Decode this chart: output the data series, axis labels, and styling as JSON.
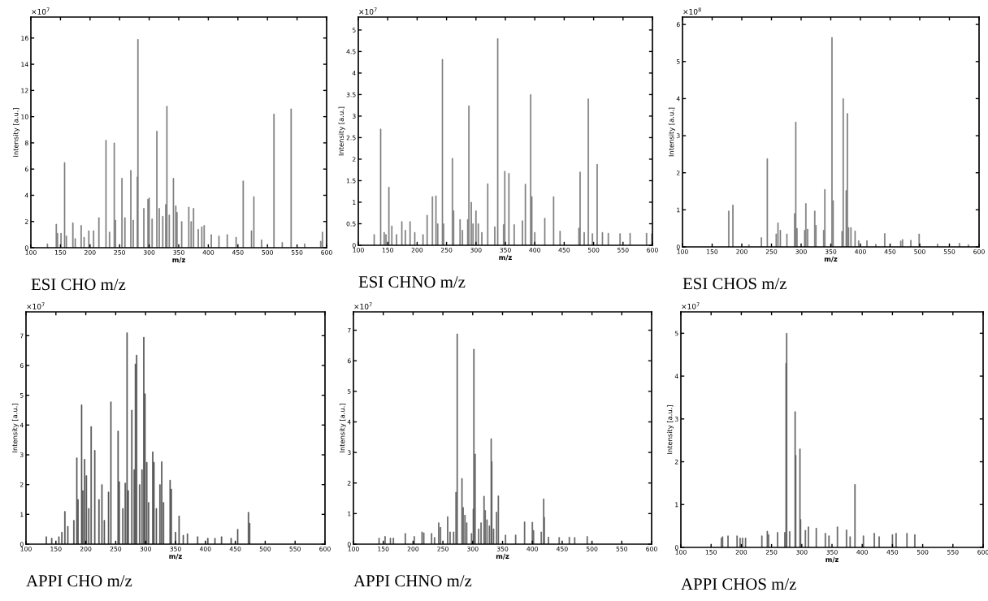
{
  "chart_data": [
    {
      "type": "bar",
      "title": "ESI CHO m/z",
      "xlabel": "m/z",
      "ylabel": "Intensity [a.u.]",
      "annotations": [
        "×10$^{7}$"
      ],
      "xlim": [
        100,
        600
      ],
      "xticks": [
        100,
        150,
        200,
        250,
        300,
        350,
        400,
        450,
        500,
        550,
        600
      ],
      "ylim": [
        0,
        17.6
      ],
      "yticks": [
        0,
        2,
        4,
        6,
        8,
        10,
        12,
        14,
        16
      ],
      "grid": false,
      "series": [
        {
          "color": "#7a7a7a",
          "x": [
            128,
            143,
            145,
            151,
            157,
            160,
            171,
            175,
            185,
            190,
            198,
            206,
            215,
            227,
            233,
            241,
            243,
            254,
            259,
            269,
            273,
            280,
            281,
            291,
            298,
            300,
            305,
            313,
            317,
            323,
            328,
            330,
            334,
            341,
            345,
            347,
            355,
            367,
            371,
            375,
            383,
            389,
            393,
            405,
            418,
            432,
            447,
            459,
            473,
            477,
            490,
            511,
            525,
            540,
            563,
            590,
            593
          ],
          "values": [
            0.3,
            1.8,
            1.1,
            1.1,
            6.5,
            0.9,
            1.9,
            0.7,
            1.7,
            0.8,
            1.3,
            1.3,
            2.3,
            8.2,
            1.2,
            8.0,
            2.1,
            5.3,
            2.3,
            5.9,
            2.1,
            5.4,
            15.9,
            3.0,
            3.7,
            3.8,
            2.2,
            8.9,
            3.0,
            2.4,
            3.3,
            10.8,
            2.5,
            5.3,
            3.2,
            2.7,
            2.0,
            3.1,
            2.0,
            3.0,
            1.4,
            1.6,
            1.7,
            1.0,
            0.9,
            1.0,
            0.8,
            5.1,
            1.3,
            3.9,
            0.6,
            10.2,
            0.4,
            10.6,
            0.3,
            0.5,
            1.2
          ]
        }
      ]
    },
    {
      "type": "bar",
      "title": "ESI CHNO m/z",
      "xlabel": "m/z",
      "ylabel": "Intensity [a.u.]",
      "annotations": [
        "×10$^{7}$"
      ],
      "xlim": [
        100,
        600
      ],
      "xticks": [
        100,
        150,
        200,
        250,
        300,
        350,
        400,
        450,
        500,
        550,
        600
      ],
      "ylim": [
        0,
        5.3
      ],
      "yticks": [
        0,
        0.5,
        1,
        1.5,
        2,
        2.5,
        3,
        3.5,
        4,
        4.5,
        5
      ],
      "grid": false,
      "series": [
        {
          "color": "#7a7a7a",
          "x": [
            127,
            138,
            144,
            147,
            152,
            157,
            165,
            174,
            180,
            188,
            196,
            210,
            217,
            226,
            232,
            235,
            243,
            245,
            260,
            262,
            273,
            277,
            286,
            288,
            292,
            295,
            300,
            304,
            310,
            320,
            332,
            337,
            347,
            349,
            356,
            365,
            379,
            384,
            393,
            395,
            400,
            417,
            432,
            443,
            475,
            477,
            484,
            491,
            498,
            506,
            515,
            525,
            545,
            562,
            590,
            599
          ],
          "values": [
            0.25,
            2.7,
            0.3,
            0.25,
            1.35,
            0.45,
            0.25,
            0.55,
            0.35,
            0.55,
            0.3,
            0.25,
            0.7,
            1.13,
            1.15,
            0.5,
            4.32,
            0.5,
            2.02,
            0.8,
            0.6,
            0.35,
            0.6,
            3.24,
            1.0,
            0.5,
            0.8,
            0.5,
            0.3,
            1.43,
            0.43,
            4.8,
            0.48,
            1.72,
            1.67,
            0.48,
            0.57,
            1.42,
            3.5,
            1.13,
            0.3,
            0.63,
            1.13,
            0.33,
            0.4,
            1.7,
            0.3,
            3.4,
            0.27,
            1.88,
            0.3,
            0.28,
            0.27,
            0.28,
            0.28,
            0.27
          ]
        }
      ]
    },
    {
      "type": "bar",
      "title": "ESI CHOS m/z",
      "xlabel": "m/z",
      "ylabel": "Intensity [a.u.]",
      "annotations": [
        "×10$^{8}$"
      ],
      "xlim": [
        100,
        600
      ],
      "xticks": [
        100,
        150,
        200,
        250,
        300,
        350,
        400,
        450,
        500,
        550,
        600
      ],
      "ylim": [
        0,
        6.2
      ],
      "yticks": [
        0,
        1,
        2,
        3,
        4,
        5,
        6
      ],
      "grid": false,
      "series": [
        {
          "color": "#7a7a7a",
          "x": [
            178,
            185,
            212,
            233,
            243,
            258,
            261,
            265,
            276,
            289,
            291,
            293,
            306,
            308,
            311,
            323,
            325,
            338,
            340,
            352,
            354,
            369,
            371,
            376,
            378,
            380,
            384,
            391,
            397,
            411,
            426,
            441,
            468,
            471,
            485,
            499,
            530,
            567,
            582
          ],
          "values": [
            0.97,
            1.13,
            0.06,
            0.25,
            2.38,
            0.35,
            0.65,
            0.45,
            0.35,
            0.9,
            3.37,
            0.5,
            0.45,
            1.17,
            0.48,
            0.97,
            0.58,
            0.45,
            1.55,
            5.65,
            1.25,
            0.42,
            4.0,
            1.52,
            3.6,
            0.52,
            0.52,
            0.43,
            0.17,
            0.17,
            0.07,
            0.36,
            0.16,
            0.2,
            0.18,
            0.35,
            0.08,
            0.1,
            0.06
          ]
        }
      ]
    },
    {
      "type": "bar",
      "title": "APPI CHO m/z",
      "xlabel": "m/z",
      "ylabel": "Intensity [a.u.]",
      "annotations": [
        "×10$^{7}$"
      ],
      "xlim": [
        100,
        600
      ],
      "xticks": [
        100,
        150,
        200,
        250,
        300,
        350,
        400,
        450,
        500,
        550,
        600
      ],
      "ylim": [
        0,
        7.8
      ],
      "yticks": [
        0,
        1,
        2,
        3,
        4,
        5,
        6,
        7
      ],
      "grid": false,
      "series": [
        {
          "color": "#505050",
          "x": [
            134,
            143,
            155,
            160,
            165,
            170,
            180,
            185,
            187,
            193,
            195,
            198,
            201,
            205,
            209,
            215,
            222,
            227,
            231,
            238,
            242,
            254,
            256,
            262,
            266,
            269,
            271,
            277,
            281,
            283,
            285,
            290,
            294,
            297,
            299,
            302,
            305,
            312,
            314,
            318,
            324,
            327,
            330,
            341,
            343,
            350,
            356,
            363,
            370,
            387,
            404,
            416,
            427,
            443,
            454,
            472,
            474
          ],
          "values": [
            0.25,
            0.2,
            0.25,
            0.4,
            1.1,
            0.6,
            0.8,
            2.9,
            1.5,
            4.68,
            1.8,
            2.85,
            2.3,
            1.2,
            3.95,
            3.15,
            1.5,
            2.0,
            0.8,
            1.75,
            4.78,
            3.8,
            2.1,
            1.2,
            2.05,
            7.1,
            1.8,
            4.5,
            2.5,
            6.05,
            6.35,
            2.0,
            2.5,
            6.95,
            5.05,
            2.75,
            1.4,
            3.1,
            2.75,
            1.2,
            2.0,
            2.77,
            1.4,
            2.15,
            1.85,
            0.4,
            0.95,
            0.3,
            0.35,
            0.25,
            0.2,
            0.2,
            0.25,
            0.2,
            0.5,
            1.07,
            0.7
          ]
        }
      ]
    },
    {
      "type": "bar",
      "title": "APPI CHNO m/z",
      "xlabel": "m/z",
      "ylabel": "Intensity [a.u.]",
      "annotations": [
        "×10$^{7}$"
      ],
      "xlim": [
        100,
        600
      ],
      "xticks": [
        100,
        150,
        200,
        250,
        300,
        350,
        400,
        450,
        500,
        550,
        600
      ],
      "ylim": [
        0,
        7.6
      ],
      "yticks": [
        0,
        1,
        2,
        3,
        4,
        5,
        6,
        7
      ],
      "grid": false,
      "series": [
        {
          "color": "#606060",
          "x": [
            143,
            153,
            162,
            167,
            187,
            202,
            215,
            218,
            231,
            236,
            243,
            246,
            258,
            262,
            268,
            272,
            274,
            282,
            284,
            287,
            290,
            298,
            300,
            301,
            302,
            304,
            310,
            314,
            319,
            321,
            324,
            328,
            331,
            332,
            335,
            340,
            343,
            355,
            372,
            387,
            400,
            402,
            415,
            419,
            420,
            427,
            445,
            462,
            471,
            492
          ],
          "values": [
            0.2,
            0.25,
            0.2,
            0.2,
            0.35,
            0.25,
            0.4,
            0.37,
            0.35,
            0.22,
            0.7,
            0.55,
            0.9,
            0.4,
            0.4,
            1.7,
            6.88,
            2.15,
            1.2,
            0.95,
            0.7,
            0.35,
            null,
            1.15,
            6.38,
            2.95,
            0.5,
            0.7,
            1.57,
            1.1,
            0.8,
            0.6,
            3.45,
            2.7,
            0.5,
            1.05,
            1.58,
            0.3,
            0.3,
            0.73,
            0.72,
            0.45,
            0.4,
            1.48,
            0.88,
            0.23,
            0.22,
            0.23,
            0.22,
            0.25
          ]
        }
      ]
    },
    {
      "type": "bar",
      "title": "APPI CHOS m/z",
      "xlabel": "m/z",
      "ylabel": "Intensity [a.u.]",
      "annotations": [
        "×10$^{7}$"
      ],
      "xlim": [
        100,
        600
      ],
      "xticks": [
        100,
        150,
        200,
        250,
        300,
        350,
        400,
        450,
        500,
        550,
        600
      ],
      "ylim": [
        0,
        5.5
      ],
      "yticks": [
        0,
        1,
        2,
        3,
        4,
        5
      ],
      "grid": false,
      "series": [
        {
          "color": "#606060",
          "x": [
            167,
            169,
            178,
            193,
            198,
            202,
            207,
            234,
            243,
            245,
            260,
            272,
            274,
            275,
            280,
            288,
            289,
            290,
            297,
            298,
            306,
            311,
            324,
            339,
            345,
            359,
            374,
            380,
            388,
            402,
            420,
            428,
            450,
            456,
            474,
            487
          ],
          "values": [
            0.22,
            0.25,
            0.27,
            0.27,
            0.22,
            0.22,
            0.22,
            0.27,
            0.38,
            0.3,
            0.35,
            0.35,
            4.3,
            5.0,
            0.37,
            null,
            3.17,
            2.15,
            2.3,
            0.65,
            0.4,
            0.48,
            0.45,
            0.33,
            0.27,
            0.48,
            0.41,
            0.25,
            1.47,
            0.27,
            0.33,
            0.25,
            0.3,
            0.33,
            0.33,
            0.3
          ]
        }
      ]
    }
  ]
}
